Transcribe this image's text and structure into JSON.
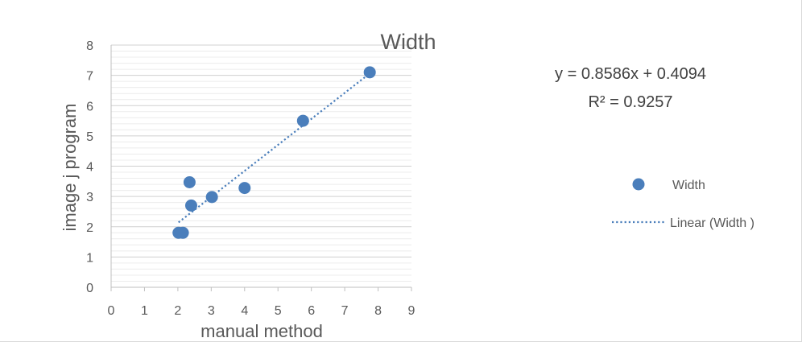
{
  "chart_data": {
    "type": "scatter",
    "title": "Width",
    "xlabel": "manual method",
    "ylabel": "image j program",
    "xlim": [
      0,
      9
    ],
    "ylim": [
      0,
      8
    ],
    "x_ticks": [
      "0",
      "1",
      "2",
      "3",
      "4",
      "5",
      "6",
      "7",
      "8",
      "9"
    ],
    "y_ticks": [
      "0",
      "1",
      "2",
      "3",
      "4",
      "5",
      "6",
      "7",
      "8"
    ],
    "grid": true,
    "legend_position": "right",
    "series": [
      {
        "name": "Width",
        "color": "#4a7ebb",
        "points": [
          {
            "x": 2.02,
            "y": 1.8
          },
          {
            "x": 2.15,
            "y": 1.8
          },
          {
            "x": 2.35,
            "y": 3.47
          },
          {
            "x": 2.4,
            "y": 2.7
          },
          {
            "x": 3.02,
            "y": 2.98
          },
          {
            "x": 4.0,
            "y": 3.28
          },
          {
            "x": 5.75,
            "y": 5.5
          },
          {
            "x": 7.75,
            "y": 7.1
          }
        ]
      }
    ],
    "trendline": {
      "name": "Linear (Width )",
      "type": "linear",
      "slope": 0.8586,
      "intercept": 0.4094,
      "x_range": [
        2.02,
        7.75
      ],
      "style": "dotted",
      "color": "#4a7ebb"
    },
    "annotations": {
      "equation": "y = 0.8586x + 0.4094",
      "r_squared": "R² = 0.9257"
    }
  }
}
